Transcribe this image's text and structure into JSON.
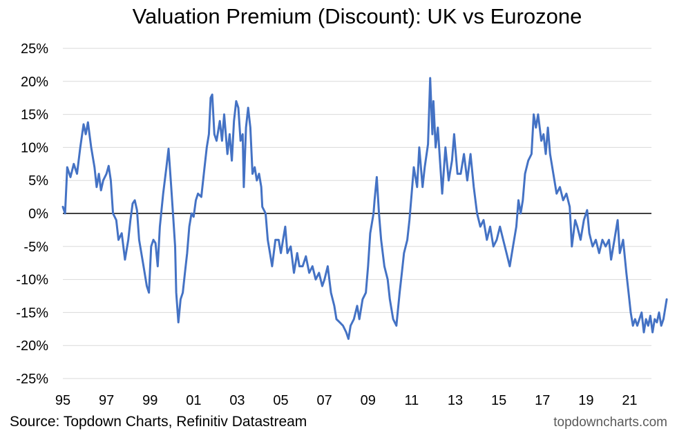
{
  "chart_data": {
    "type": "line",
    "title": "Valuation Premium (Discount): UK vs Eurozone",
    "xlabel": "",
    "ylabel": "",
    "xlim": [
      1995,
      2022
    ],
    "ylim": [
      -25,
      25
    ],
    "y_ticks": [
      25,
      20,
      15,
      10,
      5,
      0,
      -5,
      -10,
      -15,
      -20,
      -25
    ],
    "y_tick_labels": [
      "25%",
      "20%",
      "15%",
      "10%",
      "5%",
      "0%",
      "-5%",
      "-10%",
      "-15%",
      "-20%",
      "-25%"
    ],
    "x_ticks": [
      1995,
      1997,
      1999,
      2001,
      2003,
      2005,
      2007,
      2009,
      2011,
      2013,
      2015,
      2017,
      2019,
      2021
    ],
    "x_tick_labels": [
      "95",
      "97",
      "99",
      "01",
      "03",
      "05",
      "07",
      "09",
      "11",
      "13",
      "15",
      "17",
      "19",
      "21"
    ],
    "grid": true,
    "zero_line": true,
    "series": [
      {
        "name": "UK vs Eurozone valuation premium (%)",
        "color": "#4472C4",
        "points": [
          [
            1995.0,
            1.0
          ],
          [
            1995.1,
            0.0
          ],
          [
            1995.2,
            7.0
          ],
          [
            1995.35,
            5.5
          ],
          [
            1995.5,
            7.5
          ],
          [
            1995.65,
            6.0
          ],
          [
            1995.8,
            10.0
          ],
          [
            1995.95,
            13.5
          ],
          [
            1996.05,
            12.0
          ],
          [
            1996.15,
            13.8
          ],
          [
            1996.3,
            10.0
          ],
          [
            1996.45,
            7.0
          ],
          [
            1996.55,
            4.0
          ],
          [
            1996.65,
            6.0
          ],
          [
            1996.75,
            3.5
          ],
          [
            1996.85,
            5.0
          ],
          [
            1997.0,
            6.0
          ],
          [
            1997.1,
            7.2
          ],
          [
            1997.2,
            5.0
          ],
          [
            1997.3,
            0.0
          ],
          [
            1997.45,
            -1.0
          ],
          [
            1997.55,
            -4.0
          ],
          [
            1997.7,
            -3.0
          ],
          [
            1997.85,
            -7.0
          ],
          [
            1998.0,
            -4.0
          ],
          [
            1998.1,
            -1.0
          ],
          [
            1998.2,
            1.5
          ],
          [
            1998.3,
            2.0
          ],
          [
            1998.4,
            0.5
          ],
          [
            1998.5,
            -4.0
          ],
          [
            1998.6,
            -6.0
          ],
          [
            1998.7,
            -8.0
          ],
          [
            1998.85,
            -11.0
          ],
          [
            1998.95,
            -12.0
          ],
          [
            1999.05,
            -5.0
          ],
          [
            1999.15,
            -4.0
          ],
          [
            1999.25,
            -4.5
          ],
          [
            1999.35,
            -8.0
          ],
          [
            1999.45,
            -2.0
          ],
          [
            1999.6,
            3.0
          ],
          [
            1999.75,
            7.0
          ],
          [
            1999.85,
            9.8
          ],
          [
            1999.95,
            5.0
          ],
          [
            2000.05,
            0.0
          ],
          [
            2000.15,
            -5.0
          ],
          [
            2000.2,
            -12.0
          ],
          [
            2000.3,
            -16.5
          ],
          [
            2000.4,
            -13.0
          ],
          [
            2000.5,
            -12.0
          ],
          [
            2000.6,
            -9.0
          ],
          [
            2000.7,
            -6.0
          ],
          [
            2000.8,
            -2.0
          ],
          [
            2000.9,
            0.0
          ],
          [
            2001.0,
            -0.5
          ],
          [
            2001.1,
            2.0
          ],
          [
            2001.2,
            3.0
          ],
          [
            2001.35,
            2.5
          ],
          [
            2001.5,
            7.0
          ],
          [
            2001.6,
            10.0
          ],
          [
            2001.7,
            12.0
          ],
          [
            2001.78,
            17.5
          ],
          [
            2001.85,
            18.0
          ],
          [
            2001.95,
            12.0
          ],
          [
            2002.05,
            11.0
          ],
          [
            2002.2,
            14.0
          ],
          [
            2002.3,
            11.0
          ],
          [
            2002.4,
            15.0
          ],
          [
            2002.55,
            9.0
          ],
          [
            2002.65,
            12.0
          ],
          [
            2002.75,
            8.0
          ],
          [
            2002.85,
            14.0
          ],
          [
            2002.95,
            17.0
          ],
          [
            2003.05,
            16.0
          ],
          [
            2003.15,
            11.0
          ],
          [
            2003.25,
            12.0
          ],
          [
            2003.3,
            4.0
          ],
          [
            2003.4,
            13.0
          ],
          [
            2003.5,
            16.0
          ],
          [
            2003.6,
            13.0
          ],
          [
            2003.7,
            6.0
          ],
          [
            2003.8,
            7.0
          ],
          [
            2003.9,
            5.0
          ],
          [
            2004.0,
            6.0
          ],
          [
            2004.1,
            4.0
          ],
          [
            2004.15,
            1.0
          ],
          [
            2004.3,
            0.0
          ],
          [
            2004.4,
            -4.0
          ],
          [
            2004.5,
            -6.0
          ],
          [
            2004.6,
            -8.0
          ],
          [
            2004.75,
            -4.0
          ],
          [
            2004.9,
            -4.0
          ],
          [
            2005.0,
            -6.0
          ],
          [
            2005.1,
            -4.0
          ],
          [
            2005.2,
            -2.0
          ],
          [
            2005.3,
            -6.0
          ],
          [
            2005.45,
            -5.0
          ],
          [
            2005.6,
            -9.0
          ],
          [
            2005.75,
            -6.0
          ],
          [
            2005.85,
            -8.0
          ],
          [
            2006.0,
            -8.0
          ],
          [
            2006.15,
            -6.5
          ],
          [
            2006.3,
            -9.0
          ],
          [
            2006.45,
            -8.0
          ],
          [
            2006.6,
            -10.0
          ],
          [
            2006.75,
            -9.0
          ],
          [
            2006.9,
            -11.0
          ],
          [
            2007.0,
            -10.0
          ],
          [
            2007.15,
            -8.0
          ],
          [
            2007.3,
            -12.0
          ],
          [
            2007.45,
            -14.0
          ],
          [
            2007.55,
            -16.0
          ],
          [
            2007.7,
            -16.5
          ],
          [
            2007.85,
            -17.0
          ],
          [
            2008.0,
            -18.0
          ],
          [
            2008.1,
            -19.0
          ],
          [
            2008.2,
            -17.0
          ],
          [
            2008.35,
            -16.0
          ],
          [
            2008.5,
            -14.0
          ],
          [
            2008.6,
            -16.0
          ],
          [
            2008.75,
            -13.0
          ],
          [
            2008.9,
            -12.0
          ],
          [
            2009.0,
            -8.0
          ],
          [
            2009.1,
            -3.0
          ],
          [
            2009.2,
            -1.0
          ],
          [
            2009.25,
            0.0
          ],
          [
            2009.3,
            2.0
          ],
          [
            2009.4,
            5.5
          ],
          [
            2009.5,
            0.0
          ],
          [
            2009.6,
            -4.0
          ],
          [
            2009.75,
            -8.0
          ],
          [
            2009.9,
            -10.0
          ],
          [
            2010.0,
            -13.0
          ],
          [
            2010.15,
            -16.0
          ],
          [
            2010.3,
            -17.0
          ],
          [
            2010.45,
            -12.0
          ],
          [
            2010.55,
            -9.0
          ],
          [
            2010.65,
            -6.0
          ],
          [
            2010.8,
            -4.0
          ],
          [
            2010.9,
            -1.0
          ],
          [
            2011.0,
            3.0
          ],
          [
            2011.1,
            7.0
          ],
          [
            2011.25,
            4.0
          ],
          [
            2011.35,
            10.0
          ],
          [
            2011.5,
            4.0
          ],
          [
            2011.6,
            7.0
          ],
          [
            2011.75,
            10.5
          ],
          [
            2011.85,
            20.5
          ],
          [
            2011.95,
            12.0
          ],
          [
            2012.0,
            17.0
          ],
          [
            2012.1,
            10.0
          ],
          [
            2012.2,
            13.0
          ],
          [
            2012.3,
            8.0
          ],
          [
            2012.4,
            3.0
          ],
          [
            2012.55,
            10.0
          ],
          [
            2012.7,
            5.0
          ],
          [
            2012.85,
            8.0
          ],
          [
            2012.95,
            12.0
          ],
          [
            2013.1,
            6.0
          ],
          [
            2013.25,
            6.0
          ],
          [
            2013.4,
            9.0
          ],
          [
            2013.55,
            5.0
          ],
          [
            2013.7,
            9.0
          ],
          [
            2013.85,
            4.0
          ],
          [
            2014.0,
            0.0
          ],
          [
            2014.15,
            -2.0
          ],
          [
            2014.3,
            -1.0
          ],
          [
            2014.45,
            -4.0
          ],
          [
            2014.6,
            -2.0
          ],
          [
            2014.75,
            -5.0
          ],
          [
            2014.9,
            -4.0
          ],
          [
            2015.05,
            -2.0
          ],
          [
            2015.2,
            -4.0
          ],
          [
            2015.35,
            -6.0
          ],
          [
            2015.5,
            -8.0
          ],
          [
            2015.65,
            -5.0
          ],
          [
            2015.8,
            -2.0
          ],
          [
            2015.9,
            2.0
          ],
          [
            2016.0,
            0.0
          ],
          [
            2016.1,
            2.0
          ],
          [
            2016.2,
            6.0
          ],
          [
            2016.35,
            8.0
          ],
          [
            2016.5,
            9.0
          ],
          [
            2016.6,
            15.0
          ],
          [
            2016.7,
            13.0
          ],
          [
            2016.8,
            15.0
          ],
          [
            2016.95,
            11.0
          ],
          [
            2017.05,
            12.0
          ],
          [
            2017.15,
            9.0
          ],
          [
            2017.25,
            13.0
          ],
          [
            2017.35,
            9.0
          ],
          [
            2017.5,
            6.0
          ],
          [
            2017.65,
            3.0
          ],
          [
            2017.8,
            4.0
          ],
          [
            2017.95,
            2.0
          ],
          [
            2018.1,
            3.0
          ],
          [
            2018.25,
            1.0
          ],
          [
            2018.35,
            -5.0
          ],
          [
            2018.5,
            -1.0
          ],
          [
            2018.6,
            -2.0
          ],
          [
            2018.75,
            -4.0
          ],
          [
            2018.9,
            -1.0
          ],
          [
            2019.05,
            0.5
          ],
          [
            2019.15,
            -3.0
          ],
          [
            2019.3,
            -5.0
          ],
          [
            2019.45,
            -4.0
          ],
          [
            2019.6,
            -6.0
          ],
          [
            2019.75,
            -4.0
          ],
          [
            2019.9,
            -5.0
          ],
          [
            2020.05,
            -4.0
          ],
          [
            2020.15,
            -7.0
          ],
          [
            2020.3,
            -4.0
          ],
          [
            2020.45,
            -1.0
          ],
          [
            2020.55,
            -6.0
          ],
          [
            2020.7,
            -4.0
          ],
          [
            2020.85,
            -9.0
          ],
          [
            2020.95,
            -12.0
          ],
          [
            2021.05,
            -15.0
          ],
          [
            2021.15,
            -17.0
          ],
          [
            2021.25,
            -16.0
          ],
          [
            2021.35,
            -17.0
          ],
          [
            2021.45,
            -16.0
          ],
          [
            2021.55,
            -15.0
          ],
          [
            2021.65,
            -18.0
          ],
          [
            2021.75,
            -16.0
          ],
          [
            2021.85,
            -17.0
          ],
          [
            2021.95,
            -15.5
          ],
          [
            2022.05,
            -18.0
          ],
          [
            2022.15,
            -16.0
          ],
          [
            2022.25,
            -16.5
          ],
          [
            2022.35,
            -15.0
          ],
          [
            2022.45,
            -17.0
          ],
          [
            2022.55,
            -16.0
          ],
          [
            2022.7,
            -13.0
          ]
        ]
      }
    ]
  },
  "footer": {
    "source": "Source: Topdown Charts, Refinitiv Datastream",
    "watermark": "topdowncharts.com"
  }
}
